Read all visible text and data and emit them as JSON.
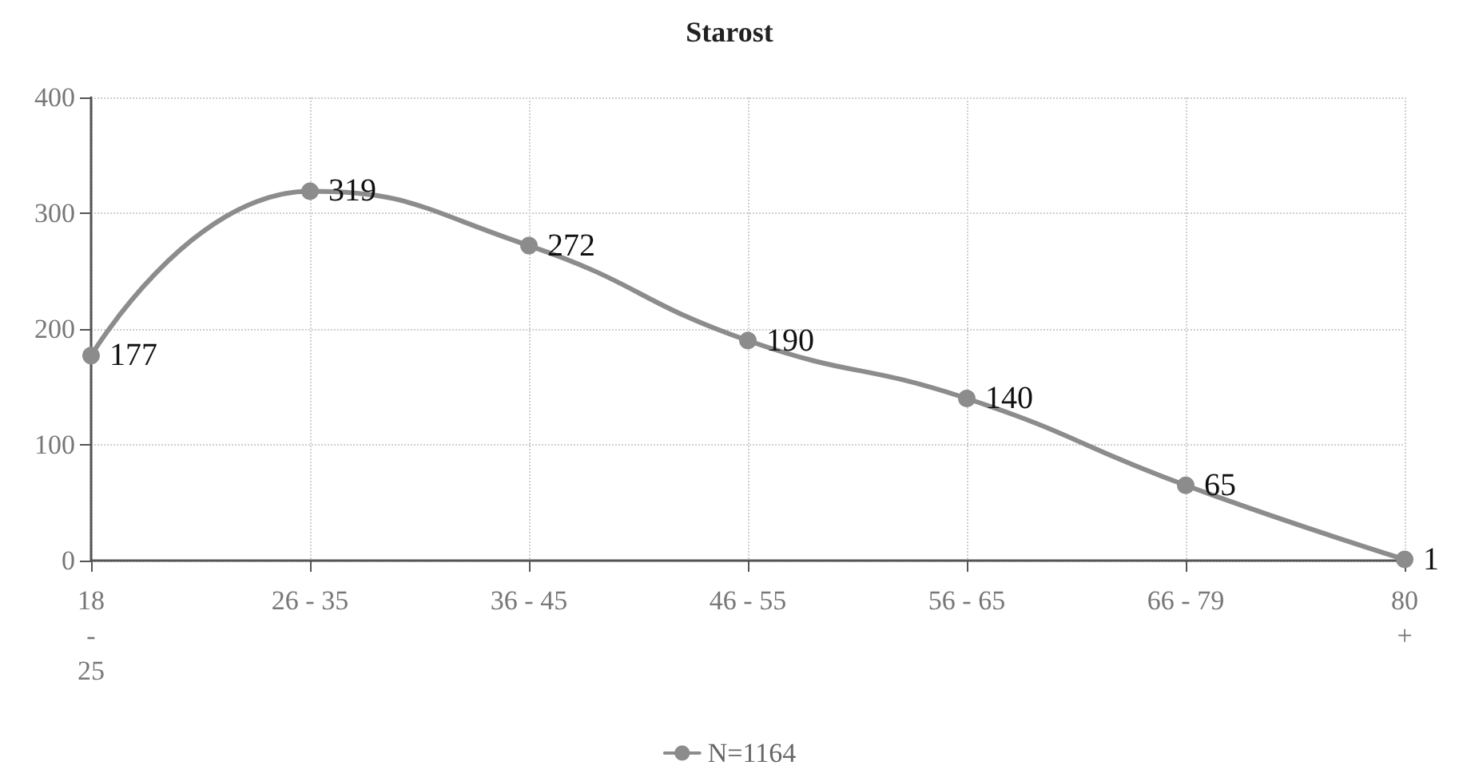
{
  "chart_data": {
    "type": "line",
    "title": "Starost",
    "categories": [
      "18 - 25",
      "26 - 35",
      "36 - 45",
      "46 - 55",
      "56 - 65",
      "66 - 79",
      "80 +"
    ],
    "series": [
      {
        "name": "N=1164",
        "color": "#8c8c8c",
        "values": [
          177,
          319,
          272,
          190,
          140,
          65,
          1
        ]
      }
    ],
    "ylim": [
      0,
      400
    ],
    "yticks": [
      0,
      100,
      200,
      300,
      400
    ],
    "grid": true,
    "legend": "bottom",
    "marker": "circle",
    "line_style": "solid",
    "data_labels": true
  }
}
